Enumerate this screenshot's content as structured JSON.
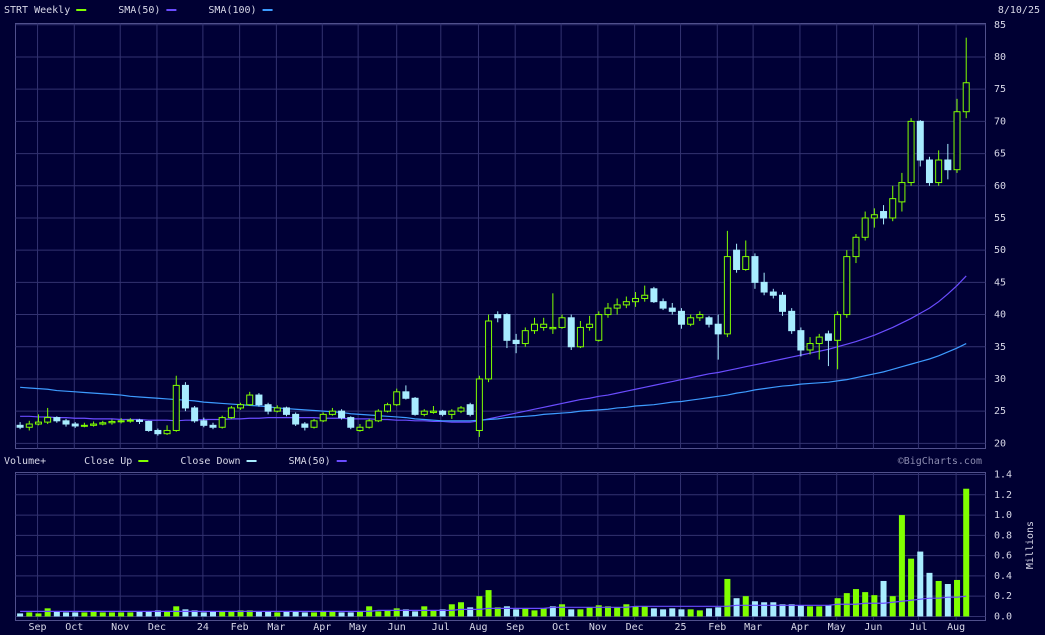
{
  "chart_data": [
    {
      "type": "candlestick",
      "title": "STRT Weekly",
      "date": "8/10/25",
      "up_color": "#80ff00",
      "down_color": "#a8ecff",
      "xlim": [
        -0.5,
        105.1
      ],
      "ylim": [
        19.2,
        85.2
      ],
      "yticks": [
        20,
        25,
        30,
        35,
        40,
        45,
        50,
        55,
        60,
        65,
        70,
        75,
        80,
        85
      ],
      "grid": true,
      "candles": [
        [
          22.8,
          23.3,
          22.2,
          22.5
        ],
        [
          22.5,
          23.5,
          22.0,
          23.0
        ],
        [
          23.0,
          24.5,
          22.8,
          23.3
        ],
        [
          23.3,
          25.5,
          23.0,
          24.0
        ],
        [
          24.0,
          24.2,
          23.2,
          23.5
        ],
        [
          23.5,
          23.8,
          22.6,
          23.0
        ],
        [
          23.0,
          23.3,
          22.4,
          22.7
        ],
        [
          22.7,
          23.2,
          22.5,
          22.8
        ],
        [
          22.8,
          23.4,
          22.6,
          23.0
        ],
        [
          23.0,
          23.5,
          22.8,
          23.2
        ],
        [
          23.2,
          23.7,
          22.9,
          23.4
        ],
        [
          23.4,
          23.9,
          23.1,
          23.5
        ],
        [
          23.5,
          23.9,
          23.2,
          23.6
        ],
        [
          23.6,
          23.8,
          23.0,
          23.4
        ],
        [
          23.4,
          23.5,
          21.8,
          22.0
        ],
        [
          22.0,
          22.3,
          21.2,
          21.5
        ],
        [
          21.5,
          22.8,
          21.3,
          22.0
        ],
        [
          22.0,
          30.5,
          21.8,
          29.0
        ],
        [
          29.0,
          29.5,
          25.0,
          25.5
        ],
        [
          25.5,
          25.8,
          23.2,
          23.5
        ],
        [
          23.5,
          24.0,
          22.5,
          22.8
        ],
        [
          22.8,
          23.2,
          22.2,
          22.5
        ],
        [
          22.5,
          24.3,
          22.3,
          24.0
        ],
        [
          24.0,
          25.8,
          23.8,
          25.5
        ],
        [
          25.5,
          26.3,
          25.2,
          26.0
        ],
        [
          26.0,
          28.0,
          25.8,
          27.5
        ],
        [
          27.5,
          27.8,
          25.7,
          26.0
        ],
        [
          26.0,
          26.3,
          24.5,
          25.0
        ],
        [
          25.0,
          25.9,
          24.8,
          25.5
        ],
        [
          25.5,
          25.7,
          24.2,
          24.5
        ],
        [
          24.5,
          24.8,
          22.7,
          23.0
        ],
        [
          23.0,
          23.3,
          22.0,
          22.5
        ],
        [
          22.5,
          23.8,
          22.3,
          23.5
        ],
        [
          23.5,
          24.8,
          23.3,
          24.5
        ],
        [
          24.5,
          25.5,
          24.3,
          25.0
        ],
        [
          25.0,
          25.3,
          23.7,
          24.0
        ],
        [
          24.0,
          24.2,
          22.2,
          22.5
        ],
        [
          22.0,
          23.0,
          21.8,
          22.5
        ],
        [
          22.5,
          23.8,
          22.3,
          23.5
        ],
        [
          23.5,
          25.3,
          23.3,
          25.0
        ],
        [
          25.0,
          26.3,
          24.8,
          26.0
        ],
        [
          26.0,
          28.5,
          25.8,
          28.0
        ],
        [
          28.0,
          29.0,
          26.8,
          27.0
        ],
        [
          27.0,
          27.2,
          24.3,
          24.5
        ],
        [
          24.5,
          25.3,
          24.2,
          25.0
        ],
        [
          24.8,
          25.8,
          24.6,
          25.0
        ],
        [
          25.0,
          25.2,
          24.2,
          24.5
        ],
        [
          24.5,
          25.3,
          23.8,
          25.0
        ],
        [
          25.0,
          25.8,
          24.7,
          25.5
        ],
        [
          26.0,
          26.3,
          24.2,
          24.5
        ],
        [
          22.0,
          30.5,
          21.0,
          30.0
        ],
        [
          30.0,
          40.0,
          29.5,
          39.0
        ],
        [
          40.0,
          40.5,
          38.8,
          39.5
        ],
        [
          40.0,
          40.2,
          34.8,
          36.0
        ],
        [
          36.0,
          37.0,
          34.0,
          35.5
        ],
        [
          35.5,
          38.0,
          35.0,
          37.5
        ],
        [
          37.5,
          39.5,
          37.0,
          38.5
        ],
        [
          38.0,
          39.5,
          37.5,
          38.5
        ],
        [
          37.8,
          43.3,
          37.0,
          38.0
        ],
        [
          38.0,
          40.0,
          37.8,
          39.5
        ],
        [
          39.5,
          40.0,
          34.5,
          35.0
        ],
        [
          35.0,
          39.0,
          34.8,
          38.0
        ],
        [
          38.0,
          39.8,
          37.5,
          38.5
        ],
        [
          36.0,
          40.5,
          35.8,
          40.0
        ],
        [
          40.0,
          41.8,
          39.5,
          41.0
        ],
        [
          41.0,
          42.5,
          40.0,
          41.5
        ],
        [
          41.5,
          42.8,
          41.0,
          42.0
        ],
        [
          42.0,
          43.5,
          41.2,
          42.5
        ],
        [
          42.5,
          44.5,
          42.0,
          43.0
        ],
        [
          44.0,
          44.3,
          41.8,
          42.0
        ],
        [
          42.0,
          42.5,
          40.7,
          41.0
        ],
        [
          41.0,
          41.8,
          40.0,
          40.5
        ],
        [
          40.5,
          41.0,
          37.8,
          38.5
        ],
        [
          38.5,
          40.0,
          38.2,
          39.5
        ],
        [
          39.5,
          40.5,
          39.0,
          40.0
        ],
        [
          39.5,
          39.8,
          38.0,
          38.5
        ],
        [
          38.5,
          40.0,
          33.0,
          37.0
        ],
        [
          37.0,
          53.0,
          36.5,
          49.0
        ],
        [
          50.0,
          51.0,
          46.5,
          47.0
        ],
        [
          47.0,
          51.5,
          46.8,
          49.0
        ],
        [
          49.0,
          49.5,
          44.0,
          45.0
        ],
        [
          45.0,
          46.5,
          43.0,
          43.5
        ],
        [
          43.5,
          44.0,
          42.5,
          43.0
        ],
        [
          43.0,
          43.5,
          39.8,
          40.5
        ],
        [
          40.5,
          41.0,
          37.0,
          37.5
        ],
        [
          37.5,
          38.0,
          33.5,
          34.5
        ],
        [
          34.5,
          36.5,
          33.8,
          35.5
        ],
        [
          35.5,
          37.0,
          33.0,
          36.5
        ],
        [
          37.0,
          37.5,
          32.0,
          36.0
        ],
        [
          36.0,
          40.5,
          31.5,
          40.0
        ],
        [
          40.0,
          50.0,
          39.5,
          49.0
        ],
        [
          49.0,
          52.5,
          48.0,
          52.0
        ],
        [
          52.0,
          56.0,
          51.5,
          55.0
        ],
        [
          55.0,
          56.5,
          53.5,
          55.5
        ],
        [
          56.0,
          57.0,
          54.0,
          55.0
        ],
        [
          55.0,
          60.0,
          54.5,
          58.0
        ],
        [
          57.5,
          62.0,
          56.0,
          60.5
        ],
        [
          60.5,
          70.5,
          60.0,
          70.0
        ],
        [
          70.0,
          70.2,
          63.0,
          64.0
        ],
        [
          64.0,
          64.5,
          60.0,
          60.5
        ],
        [
          60.5,
          65.5,
          60.0,
          64.0
        ],
        [
          64.0,
          66.5,
          61.0,
          62.5
        ],
        [
          62.5,
          73.5,
          62.0,
          71.5
        ],
        [
          71.5,
          83.0,
          70.5,
          76.0
        ]
      ],
      "series": [
        {
          "name": "SMA(50)",
          "color": "#6a4cff",
          "values": [
            24.2,
            24.2,
            24.1,
            24.1,
            24.0,
            24.0,
            23.9,
            23.9,
            23.8,
            23.8,
            23.8,
            23.7,
            23.7,
            23.7,
            23.6,
            23.6,
            23.6,
            23.5,
            23.6,
            23.6,
            23.7,
            23.7,
            23.7,
            23.8,
            23.8,
            23.9,
            23.9,
            24.0,
            24.0,
            24.0,
            24.0,
            24.0,
            24.0,
            23.9,
            23.9,
            23.9,
            23.8,
            23.8,
            23.8,
            23.7,
            23.7,
            23.6,
            23.6,
            23.5,
            23.5,
            23.4,
            23.4,
            23.3,
            23.3,
            23.3,
            23.5,
            23.8,
            24.1,
            24.4,
            24.7,
            25.0,
            25.3,
            25.6,
            25.9,
            26.2,
            26.5,
            26.8,
            27.0,
            27.3,
            27.5,
            27.8,
            28.1,
            28.4,
            28.7,
            29.0,
            29.3,
            29.6,
            29.9,
            30.2,
            30.5,
            30.8,
            31.0,
            31.3,
            31.6,
            31.9,
            32.2,
            32.5,
            32.8,
            33.1,
            33.4,
            33.7,
            34.0,
            34.3,
            34.6,
            35.0,
            35.4,
            35.8,
            36.3,
            36.8,
            37.4,
            38.0,
            38.7,
            39.4,
            40.2,
            41.0,
            42.0,
            43.2,
            44.5,
            46.0
          ]
        },
        {
          "name": "SMA(100)",
          "color": "#3d9bff",
          "values": [
            28.7,
            28.6,
            28.5,
            28.4,
            28.2,
            28.1,
            28.0,
            27.9,
            27.8,
            27.7,
            27.6,
            27.5,
            27.3,
            27.2,
            27.1,
            27.0,
            26.9,
            26.8,
            26.7,
            26.6,
            26.4,
            26.3,
            26.2,
            26.1,
            26.0,
            25.9,
            25.8,
            25.7,
            25.5,
            25.4,
            25.3,
            25.2,
            25.1,
            25.0,
            24.9,
            24.8,
            24.6,
            24.5,
            24.4,
            24.3,
            24.2,
            24.1,
            24.0,
            23.8,
            23.7,
            23.6,
            23.5,
            23.5,
            23.5,
            23.5,
            23.6,
            23.7,
            23.8,
            24.0,
            24.1,
            24.2,
            24.3,
            24.5,
            24.6,
            24.7,
            24.8,
            25.0,
            25.1,
            25.2,
            25.3,
            25.5,
            25.6,
            25.8,
            25.9,
            26.0,
            26.2,
            26.4,
            26.5,
            26.7,
            26.9,
            27.1,
            27.3,
            27.5,
            27.8,
            28.0,
            28.3,
            28.5,
            28.7,
            28.9,
            29.0,
            29.2,
            29.3,
            29.4,
            29.5,
            29.7,
            29.9,
            30.2,
            30.5,
            30.8,
            31.1,
            31.5,
            31.9,
            32.3,
            32.7,
            33.1,
            33.6,
            34.2,
            34.8,
            35.5
          ]
        }
      ]
    },
    {
      "type": "volume",
      "title": "Volume+",
      "up_label": "Close Up",
      "up_color": "#80ff00",
      "down_label": "Close Down",
      "down_color": "#a8ecff",
      "source": "©BigCharts.com",
      "ylabel": "Millions",
      "xlim": [
        -0.5,
        105.1
      ],
      "ylim": [
        -0.04,
        1.42
      ],
      "yticks": [
        {
          "value": 0,
          "label": "0.0"
        },
        0.2,
        0.4,
        0.6,
        0.8,
        {
          "value": 1,
          "label": "1.0"
        },
        1.2,
        1.4
      ],
      "grid": true,
      "xticks": [
        {
          "value": 1.9,
          "label": "Sep"
        },
        {
          "value": 5.9,
          "label": "Oct"
        },
        {
          "value": 10.9,
          "label": "Nov"
        },
        {
          "value": 14.9,
          "label": "Dec"
        },
        {
          "value": 19.9,
          "label": "24"
        },
        {
          "value": 23.9,
          "label": "Feb"
        },
        {
          "value": 27.9,
          "label": "Mar"
        },
        {
          "value": 32.9,
          "label": "Apr"
        },
        {
          "value": 36.8,
          "label": "May"
        },
        {
          "value": 41,
          "label": "Jun"
        },
        {
          "value": 45.8,
          "label": "Jul"
        },
        {
          "value": 49.9,
          "label": "Aug"
        },
        {
          "value": 53.9,
          "label": "Sep"
        },
        {
          "value": 58.9,
          "label": "Oct"
        },
        {
          "value": 62.9,
          "label": "Nov"
        },
        {
          "value": 66.9,
          "label": "Dec"
        },
        {
          "value": 71.9,
          "label": "25"
        },
        {
          "value": 75.9,
          "label": "Feb"
        },
        {
          "value": 79.8,
          "label": "Mar"
        },
        {
          "value": 84.9,
          "label": "Apr"
        },
        {
          "value": 88.9,
          "label": "May"
        },
        {
          "value": 92.9,
          "label": "Jun"
        },
        {
          "value": 97.8,
          "label": "Jul"
        },
        {
          "value": 101.9,
          "label": "Aug"
        }
      ],
      "values": [
        0.03,
        0.04,
        0.03,
        0.08,
        0.05,
        0.04,
        0.04,
        0.04,
        0.05,
        0.04,
        0.04,
        0.04,
        0.04,
        0.05,
        0.05,
        0.06,
        0.05,
        0.1,
        0.07,
        0.06,
        0.04,
        0.05,
        0.05,
        0.05,
        0.06,
        0.06,
        0.05,
        0.05,
        0.04,
        0.05,
        0.05,
        0.04,
        0.04,
        0.05,
        0.05,
        0.04,
        0.04,
        0.05,
        0.1,
        0.05,
        0.06,
        0.08,
        0.07,
        0.05,
        0.1,
        0.06,
        0.07,
        0.12,
        0.14,
        0.09,
        0.2,
        0.26,
        0.09,
        0.1,
        0.07,
        0.08,
        0.06,
        0.08,
        0.1,
        0.12,
        0.07,
        0.07,
        0.09,
        0.11,
        0.1,
        0.09,
        0.12,
        0.1,
        0.1,
        0.08,
        0.07,
        0.08,
        0.07,
        0.07,
        0.06,
        0.08,
        0.09,
        0.37,
        0.18,
        0.2,
        0.15,
        0.14,
        0.14,
        0.12,
        0.12,
        0.11,
        0.1,
        0.1,
        0.11,
        0.18,
        0.23,
        0.27,
        0.24,
        0.21,
        0.35,
        0.2,
        1.0,
        0.57,
        0.64,
        0.43,
        0.35,
        0.32,
        0.36,
        1.26
      ],
      "series": [
        {
          "name": "SMA(50)",
          "color": "#6a4cff",
          "values": [
            0.05,
            0.05,
            0.05,
            0.05,
            0.05,
            0.05,
            0.05,
            0.05,
            0.05,
            0.05,
            0.05,
            0.05,
            0.05,
            0.05,
            0.05,
            0.05,
            0.05,
            0.05,
            0.05,
            0.05,
            0.05,
            0.05,
            0.05,
            0.05,
            0.05,
            0.05,
            0.05,
            0.05,
            0.05,
            0.05,
            0.05,
            0.05,
            0.05,
            0.05,
            0.05,
            0.05,
            0.05,
            0.05,
            0.05,
            0.06,
            0.06,
            0.06,
            0.06,
            0.06,
            0.06,
            0.06,
            0.06,
            0.06,
            0.07,
            0.07,
            0.07,
            0.08,
            0.08,
            0.08,
            0.08,
            0.08,
            0.08,
            0.08,
            0.09,
            0.09,
            0.09,
            0.09,
            0.09,
            0.09,
            0.09,
            0.09,
            0.09,
            0.1,
            0.1,
            0.1,
            0.1,
            0.1,
            0.1,
            0.1,
            0.1,
            0.1,
            0.1,
            0.1,
            0.11,
            0.11,
            0.11,
            0.11,
            0.11,
            0.11,
            0.11,
            0.11,
            0.11,
            0.11,
            0.11,
            0.12,
            0.12,
            0.12,
            0.13,
            0.13,
            0.13,
            0.14,
            0.15,
            0.16,
            0.17,
            0.18,
            0.18,
            0.19,
            0.19,
            0.2
          ]
        }
      ]
    }
  ]
}
